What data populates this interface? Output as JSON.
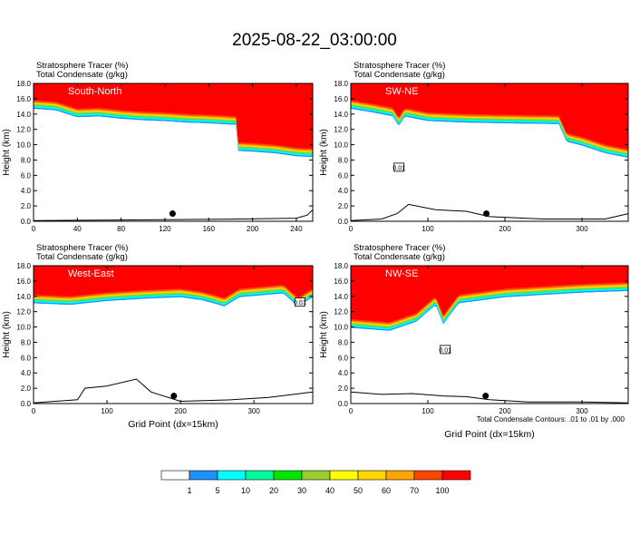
{
  "title": "2025-08-22_03:00:00",
  "footnote": "Total Condensate Contours: .01 to .01 by .000",
  "colorbar": {
    "colors": [
      "#ffffff",
      "#1e90ff",
      "#00ffff",
      "#00fa9a",
      "#00e600",
      "#9acd32",
      "#ffff00",
      "#ffd700",
      "#ffa500",
      "#ff4500",
      "#ff0000"
    ],
    "labels": [
      "1",
      "5",
      "10",
      "20",
      "30",
      "40",
      "50",
      "60",
      "70",
      "100"
    ]
  },
  "chart_data": [
    {
      "type": "heatmap",
      "panel_title": "South-North",
      "label_line1": "Stratosphere Tracer   (%)",
      "label_line2": "Total Condensate   (g/kg)",
      "ylabel": "Height (km)",
      "xlabel": "",
      "xlim": [
        0,
        255
      ],
      "ylim": [
        0,
        18
      ],
      "xticks": [
        "0",
        "40",
        "80",
        "120",
        "160",
        "200",
        "240"
      ],
      "yticks": [
        "0.0",
        "2.0",
        "4.0",
        "6.0",
        "8.0",
        "10.0",
        "12.0",
        "14.0",
        "16.0",
        "18.0"
      ],
      "tropopause_km": [
        [
          0,
          15.8
        ],
        [
          20,
          15.6
        ],
        [
          40,
          14.7
        ],
        [
          60,
          14.8
        ],
        [
          80,
          14.5
        ],
        [
          100,
          14.3
        ],
        [
          120,
          14.2
        ],
        [
          140,
          14.0
        ],
        [
          160,
          13.9
        ],
        [
          185,
          13.7
        ],
        [
          187,
          10.3
        ],
        [
          200,
          10.2
        ],
        [
          220,
          10.0
        ],
        [
          240,
          9.6
        ],
        [
          255,
          9.5
        ]
      ],
      "terrain_km": [
        [
          0,
          0.1
        ],
        [
          60,
          0.15
        ],
        [
          120,
          0.2
        ],
        [
          190,
          0.3
        ],
        [
          240,
          0.4
        ],
        [
          250,
          0.8
        ],
        [
          255,
          1.5
        ]
      ],
      "dot": [
        127,
        1.0
      ],
      "contour_labels": []
    },
    {
      "type": "heatmap",
      "panel_title": "SW-NE",
      "label_line1": "Stratosphere Tracer   (%)",
      "label_line2": "Total Condensate   (g/kg)",
      "ylabel": "Height (km)",
      "xlabel": "",
      "xlim": [
        0,
        360
      ],
      "ylim": [
        0,
        18
      ],
      "xticks": [
        "0",
        "100",
        "200",
        "300"
      ],
      "yticks": [
        "0.0",
        "2.0",
        "4.0",
        "6.0",
        "8.0",
        "10.0",
        "12.0",
        "14.0",
        "16.0",
        "18.0"
      ],
      "tropopause_km": [
        [
          0,
          15.8
        ],
        [
          30,
          15.3
        ],
        [
          55,
          14.8
        ],
        [
          62,
          13.5
        ],
        [
          70,
          14.8
        ],
        [
          100,
          14.2
        ],
        [
          150,
          14.0
        ],
        [
          200,
          13.9
        ],
        [
          270,
          13.8
        ],
        [
          280,
          11.5
        ],
        [
          300,
          11.0
        ],
        [
          330,
          10.0
        ],
        [
          360,
          9.4
        ]
      ],
      "terrain_km": [
        [
          0,
          0.1
        ],
        [
          40,
          0.3
        ],
        [
          60,
          1.0
        ],
        [
          75,
          2.2
        ],
        [
          110,
          1.5
        ],
        [
          150,
          1.3
        ],
        [
          180,
          0.6
        ],
        [
          250,
          0.3
        ],
        [
          330,
          0.3
        ],
        [
          360,
          1.0
        ]
      ],
      "dot": [
        176,
        1.0
      ],
      "contour_labels": [
        {
          "x": 62,
          "y": 7.0,
          "text": "0.01"
        }
      ]
    },
    {
      "type": "heatmap",
      "panel_title": "West-East",
      "label_line1": "Stratosphere Tracer   (%)",
      "label_line2": "Total Condensate   (g/kg)",
      "ylabel": "Height (km)",
      "xlabel": "Grid Point (dx=15km)",
      "xlim": [
        0,
        380
      ],
      "ylim": [
        0,
        18
      ],
      "xticks": [
        "0",
        "100",
        "200",
        "300"
      ],
      "yticks": [
        "0.0",
        "2.0",
        "4.0",
        "6.0",
        "8.0",
        "10.0",
        "12.0",
        "14.0",
        "16.0",
        "18.0"
      ],
      "tropopause_km": [
        [
          0,
          14.2
        ],
        [
          50,
          14.0
        ],
        [
          100,
          14.5
        ],
        [
          150,
          14.8
        ],
        [
          200,
          15.0
        ],
        [
          230,
          14.6
        ],
        [
          260,
          13.8
        ],
        [
          280,
          15.0
        ],
        [
          340,
          15.5
        ],
        [
          360,
          13.8
        ],
        [
          380,
          15.0
        ]
      ],
      "terrain_km": [
        [
          0,
          0.1
        ],
        [
          60,
          0.5
        ],
        [
          70,
          2.0
        ],
        [
          100,
          2.3
        ],
        [
          140,
          3.2
        ],
        [
          160,
          1.5
        ],
        [
          200,
          0.3
        ],
        [
          270,
          0.5
        ],
        [
          320,
          0.8
        ],
        [
          380,
          1.5
        ]
      ],
      "dot": [
        191,
        1.0
      ],
      "contour_labels": [
        {
          "x": 362,
          "y": 13.2,
          "text": "0.01"
        }
      ]
    },
    {
      "type": "heatmap",
      "panel_title": "NW-SE",
      "label_line1": "Stratosphere Tracer   (%)",
      "label_line2": "Total Condensate   (g/kg)",
      "ylabel": "Height (km)",
      "xlabel": "Grid Point (dx=15km)",
      "xlim": [
        0,
        360
      ],
      "ylim": [
        0,
        18
      ],
      "xticks": [
        "0",
        "100",
        "200",
        "300"
      ],
      "yticks": [
        "0.0",
        "2.0",
        "4.0",
        "6.0",
        "8.0",
        "10.0",
        "12.0",
        "14.0",
        "16.0",
        "18.0"
      ],
      "tropopause_km": [
        [
          0,
          11.0
        ],
        [
          50,
          10.6
        ],
        [
          85,
          11.8
        ],
        [
          110,
          14.0
        ],
        [
          120,
          11.5
        ],
        [
          140,
          14.2
        ],
        [
          200,
          15.0
        ],
        [
          300,
          15.6
        ],
        [
          360,
          15.8
        ]
      ],
      "terrain_km": [
        [
          0,
          1.5
        ],
        [
          40,
          1.2
        ],
        [
          80,
          1.3
        ],
        [
          120,
          1.0
        ],
        [
          150,
          0.9
        ],
        [
          180,
          0.5
        ],
        [
          230,
          0.2
        ],
        [
          300,
          0.2
        ],
        [
          360,
          0.1
        ]
      ],
      "dot": [
        175,
        1.0
      ],
      "contour_labels": [
        {
          "x": 122,
          "y": 7.0,
          "text": "0.01"
        }
      ]
    }
  ]
}
